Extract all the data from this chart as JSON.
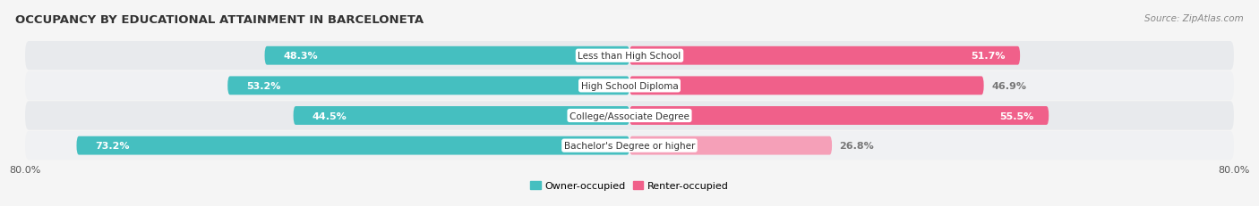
{
  "title": "OCCUPANCY BY EDUCATIONAL ATTAINMENT IN BARCELONETA",
  "source": "Source: ZipAtlas.com",
  "categories": [
    "Less than High School",
    "High School Diploma",
    "College/Associate Degree",
    "Bachelor's Degree or higher"
  ],
  "owner_values": [
    48.3,
    53.2,
    44.5,
    73.2
  ],
  "renter_values": [
    51.7,
    46.9,
    55.5,
    26.8
  ],
  "owner_color": "#45bfc0",
  "renter_colors": [
    "#f0608a",
    "#f0608a",
    "#f0608a",
    "#f5a0b8"
  ],
  "owner_label": "Owner-occupied",
  "renter_label": "Renter-occupied",
  "xlim_left": -80.0,
  "xlim_right": 80.0,
  "bar_height": 0.62,
  "row_bg_colors": [
    "#e8eaed",
    "#f0f1f3",
    "#e8eaed",
    "#f0f1f3"
  ],
  "fig_bg_color": "#f5f5f5",
  "title_fontsize": 9.5,
  "label_fontsize": 8,
  "tick_fontsize": 8,
  "source_fontsize": 7.5,
  "renter_label_outside": [
    false,
    true,
    false,
    true
  ],
  "owner_label_outside": [
    false,
    false,
    false,
    false
  ]
}
